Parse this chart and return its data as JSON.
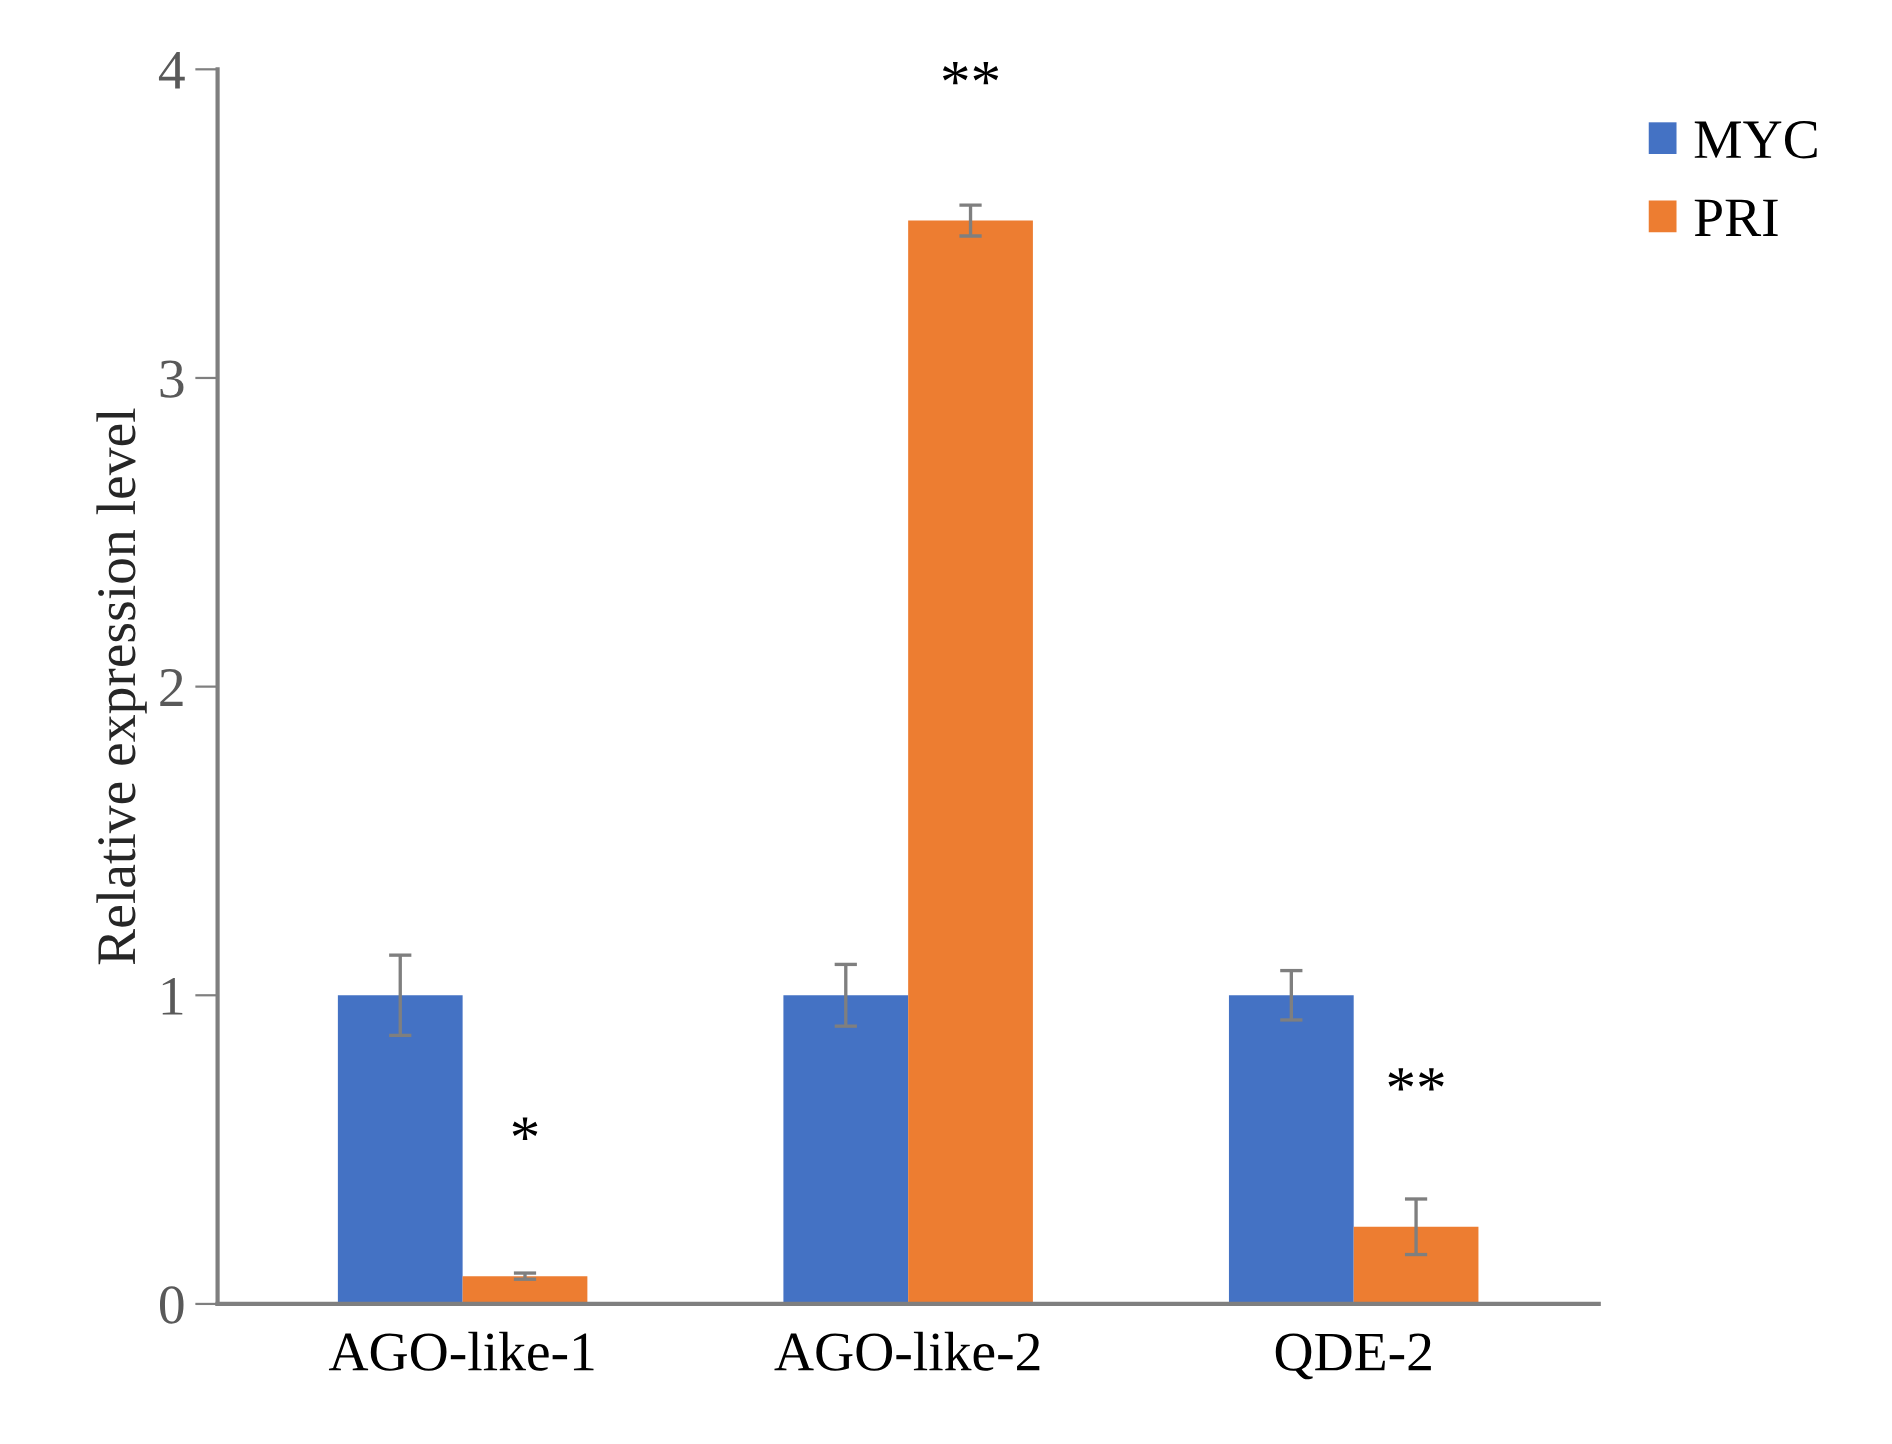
{
  "chart_data": {
    "type": "bar",
    "ylabel": "Relative expression level",
    "categories": [
      "AGO-like-1",
      "AGO-like-2",
      "QDE-2"
    ],
    "series": [
      {
        "name": "MYC",
        "color": "#4472c4",
        "values": [
          1.0,
          1.0,
          1.0
        ],
        "errors": [
          0.13,
          0.1,
          0.08
        ]
      },
      {
        "name": "PRI",
        "color": "#ed7d31",
        "values": [
          0.09,
          3.51,
          0.25
        ],
        "errors": [
          0.01,
          0.05,
          0.09
        ]
      }
    ],
    "ylim": [
      0,
      4
    ],
    "yticks": [
      0,
      1,
      2,
      3,
      4
    ],
    "grid": false,
    "legend": "top right",
    "annotations": [
      {
        "text": "*",
        "x": "AGO-like-1",
        "y": 0.09
      },
      {
        "text": "**",
        "x": "AGO-like-2",
        "y": 3.51
      },
      {
        "text": "**",
        "x": "QDE-2",
        "y": 0.25
      }
    ]
  }
}
